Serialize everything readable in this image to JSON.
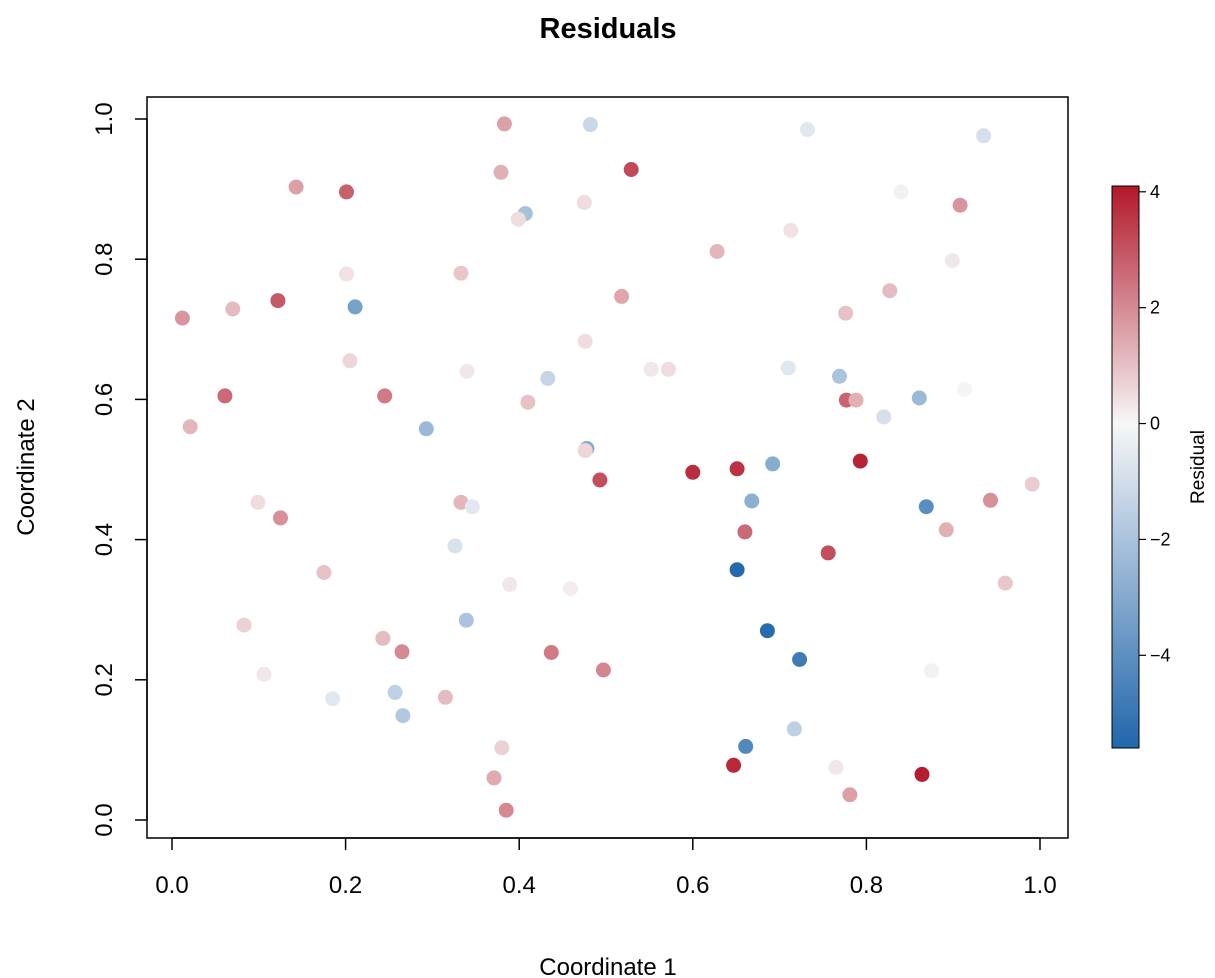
{
  "chart_data": {
    "type": "scatter",
    "title": "Residuals",
    "xlabel": "Coordinate 1",
    "ylabel": "Coordinate 2",
    "xlim": [
      0.0,
      1.0
    ],
    "ylim": [
      0.0,
      1.0
    ],
    "x_ticks": [
      "0.0",
      "0.2",
      "0.4",
      "0.6",
      "0.8",
      "1.0"
    ],
    "y_ticks": [
      "0.0",
      "0.2",
      "0.4",
      "0.6",
      "0.8",
      "1.0"
    ],
    "grid": false,
    "colorbar": {
      "label": "Residual",
      "range": [
        -5.6,
        4.1
      ],
      "ticks": [
        "4",
        "2",
        "0",
        "−2",
        "−4"
      ],
      "tick_values": [
        4,
        2,
        0,
        -2,
        -4
      ],
      "color_low": "#2166AC",
      "color_mid": "#F7F7F7",
      "color_high": "#B2182B"
    },
    "points": [
      {
        "x": 0.383,
        "y": 0.993,
        "r": 1.6
      },
      {
        "x": 0.482,
        "y": 0.992,
        "r": -1.2
      },
      {
        "x": 0.732,
        "y": 0.985,
        "r": -0.6
      },
      {
        "x": 0.935,
        "y": 0.976,
        "r": -0.9
      },
      {
        "x": 0.529,
        "y": 0.928,
        "r": 3.2
      },
      {
        "x": 0.379,
        "y": 0.924,
        "r": 1.3
      },
      {
        "x": 0.143,
        "y": 0.903,
        "r": 1.6
      },
      {
        "x": 0.201,
        "y": 0.896,
        "r": 2.8
      },
      {
        "x": 0.84,
        "y": 0.896,
        "r": -0.2
      },
      {
        "x": 0.475,
        "y": 0.881,
        "r": 0.5
      },
      {
        "x": 0.908,
        "y": 0.877,
        "r": 1.8
      },
      {
        "x": 0.407,
        "y": 0.865,
        "r": -2.1
      },
      {
        "x": 0.399,
        "y": 0.857,
        "r": 0.5
      },
      {
        "x": 0.713,
        "y": 0.841,
        "r": 0.4
      },
      {
        "x": 0.628,
        "y": 0.811,
        "r": 1.2
      },
      {
        "x": 0.899,
        "y": 0.798,
        "r": 0.3
      },
      {
        "x": 0.333,
        "y": 0.78,
        "r": 0.9
      },
      {
        "x": 0.201,
        "y": 0.779,
        "r": 0.4
      },
      {
        "x": 0.827,
        "y": 0.755,
        "r": 1.1
      },
      {
        "x": 0.518,
        "y": 0.747,
        "r": 1.5
      },
      {
        "x": 0.122,
        "y": 0.741,
        "r": 2.9
      },
      {
        "x": 0.211,
        "y": 0.732,
        "r": -3.3
      },
      {
        "x": 0.07,
        "y": 0.729,
        "r": 1.1
      },
      {
        "x": 0.776,
        "y": 0.723,
        "r": 1.0
      },
      {
        "x": 0.012,
        "y": 0.716,
        "r": 1.8
      },
      {
        "x": 0.476,
        "y": 0.683,
        "r": 0.5
      },
      {
        "x": 0.205,
        "y": 0.655,
        "r": 0.6
      },
      {
        "x": 0.71,
        "y": 0.645,
        "r": -0.6
      },
      {
        "x": 0.552,
        "y": 0.643,
        "r": 0.3
      },
      {
        "x": 0.572,
        "y": 0.643,
        "r": 0.5
      },
      {
        "x": 0.34,
        "y": 0.64,
        "r": 0.3
      },
      {
        "x": 0.769,
        "y": 0.633,
        "r": -2.0
      },
      {
        "x": 0.433,
        "y": 0.63,
        "r": -1.3
      },
      {
        "x": 0.913,
        "y": 0.614,
        "r": -0.1
      },
      {
        "x": 0.061,
        "y": 0.605,
        "r": 2.6
      },
      {
        "x": 0.245,
        "y": 0.605,
        "r": 2.3
      },
      {
        "x": 0.861,
        "y": 0.602,
        "r": -2.4
      },
      {
        "x": 0.777,
        "y": 0.599,
        "r": 2.7
      },
      {
        "x": 0.788,
        "y": 0.599,
        "r": 1.3
      },
      {
        "x": 0.41,
        "y": 0.596,
        "r": 1.0
      },
      {
        "x": 0.82,
        "y": 0.575,
        "r": -0.9
      },
      {
        "x": 0.021,
        "y": 0.561,
        "r": 1.2
      },
      {
        "x": 0.293,
        "y": 0.558,
        "r": -2.4
      },
      {
        "x": 0.478,
        "y": 0.53,
        "r": -3.0
      },
      {
        "x": 0.476,
        "y": 0.527,
        "r": 0.6
      },
      {
        "x": 0.793,
        "y": 0.512,
        "r": 3.9
      },
      {
        "x": 0.692,
        "y": 0.508,
        "r": -2.9
      },
      {
        "x": 0.651,
        "y": 0.501,
        "r": 3.6
      },
      {
        "x": 0.6,
        "y": 0.496,
        "r": 3.7
      },
      {
        "x": 0.493,
        "y": 0.485,
        "r": 3.1
      },
      {
        "x": 0.991,
        "y": 0.479,
        "r": 0.8
      },
      {
        "x": 0.943,
        "y": 0.456,
        "r": 1.9
      },
      {
        "x": 0.668,
        "y": 0.455,
        "r": -2.8
      },
      {
        "x": 0.099,
        "y": 0.453,
        "r": 0.5
      },
      {
        "x": 0.333,
        "y": 0.453,
        "r": 1.2
      },
      {
        "x": 0.346,
        "y": 0.447,
        "r": -0.6
      },
      {
        "x": 0.869,
        "y": 0.447,
        "r": -4.1
      },
      {
        "x": 0.125,
        "y": 0.431,
        "r": 1.9
      },
      {
        "x": 0.892,
        "y": 0.414,
        "r": 1.3
      },
      {
        "x": 0.66,
        "y": 0.411,
        "r": 2.6
      },
      {
        "x": 0.326,
        "y": 0.391,
        "r": -0.8
      },
      {
        "x": 0.756,
        "y": 0.381,
        "r": 3.1
      },
      {
        "x": 0.651,
        "y": 0.357,
        "r": -5.5
      },
      {
        "x": 0.175,
        "y": 0.353,
        "r": 1.0
      },
      {
        "x": 0.96,
        "y": 0.338,
        "r": 0.9
      },
      {
        "x": 0.389,
        "y": 0.336,
        "r": 0.3
      },
      {
        "x": 0.459,
        "y": 0.33,
        "r": 0.2
      },
      {
        "x": 0.339,
        "y": 0.285,
        "r": -2.0
      },
      {
        "x": 0.083,
        "y": 0.278,
        "r": 0.7
      },
      {
        "x": 0.686,
        "y": 0.27,
        "r": -5.4
      },
      {
        "x": 0.243,
        "y": 0.259,
        "r": 1.1
      },
      {
        "x": 0.265,
        "y": 0.24,
        "r": 2.0
      },
      {
        "x": 0.437,
        "y": 0.239,
        "r": 2.3
      },
      {
        "x": 0.723,
        "y": 0.229,
        "r": -4.8
      },
      {
        "x": 0.497,
        "y": 0.214,
        "r": 2.1
      },
      {
        "x": 0.875,
        "y": 0.213,
        "r": -0.2
      },
      {
        "x": 0.106,
        "y": 0.208,
        "r": 0.3
      },
      {
        "x": 0.257,
        "y": 0.182,
        "r": -1.5
      },
      {
        "x": 0.315,
        "y": 0.175,
        "r": 1.1
      },
      {
        "x": 0.185,
        "y": 0.173,
        "r": -0.6
      },
      {
        "x": 0.266,
        "y": 0.149,
        "r": -1.8
      },
      {
        "x": 0.717,
        "y": 0.13,
        "r": -1.5
      },
      {
        "x": 0.661,
        "y": 0.105,
        "r": -4.3
      },
      {
        "x": 0.38,
        "y": 0.103,
        "r": 0.7
      },
      {
        "x": 0.647,
        "y": 0.078,
        "r": 3.8
      },
      {
        "x": 0.765,
        "y": 0.075,
        "r": 0.3
      },
      {
        "x": 0.864,
        "y": 0.065,
        "r": 4.0
      },
      {
        "x": 0.371,
        "y": 0.06,
        "r": 1.4
      },
      {
        "x": 0.781,
        "y": 0.036,
        "r": 1.6
      },
      {
        "x": 0.385,
        "y": 0.014,
        "r": 2.0
      }
    ]
  }
}
